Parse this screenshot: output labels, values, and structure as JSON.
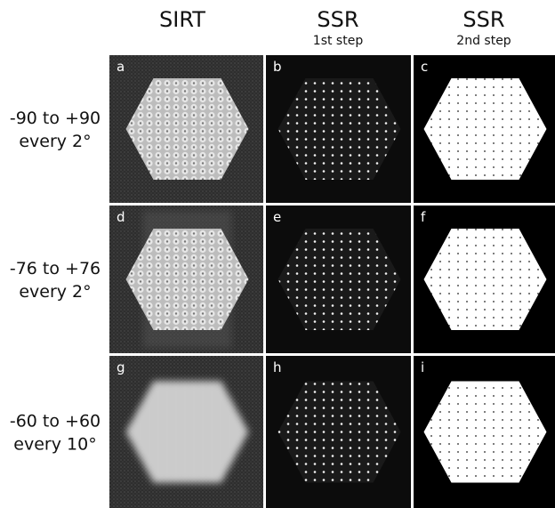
{
  "columns": [
    {
      "title": "SIRT"
    },
    {
      "title": "SSR",
      "subtitle": "1st step"
    },
    {
      "title": "SSR",
      "subtitle": "2nd step"
    }
  ],
  "rows": [
    {
      "lines": [
        "-90 to +90",
        "every 2°"
      ]
    },
    {
      "lines": [
        "-76 to +76",
        "every 2°"
      ]
    },
    {
      "lines": [
        "-60 to +60",
        "every 10°"
      ]
    }
  ],
  "panels": [
    "a",
    "b",
    "c",
    "d",
    "e",
    "f",
    "g",
    "h",
    "i"
  ]
}
